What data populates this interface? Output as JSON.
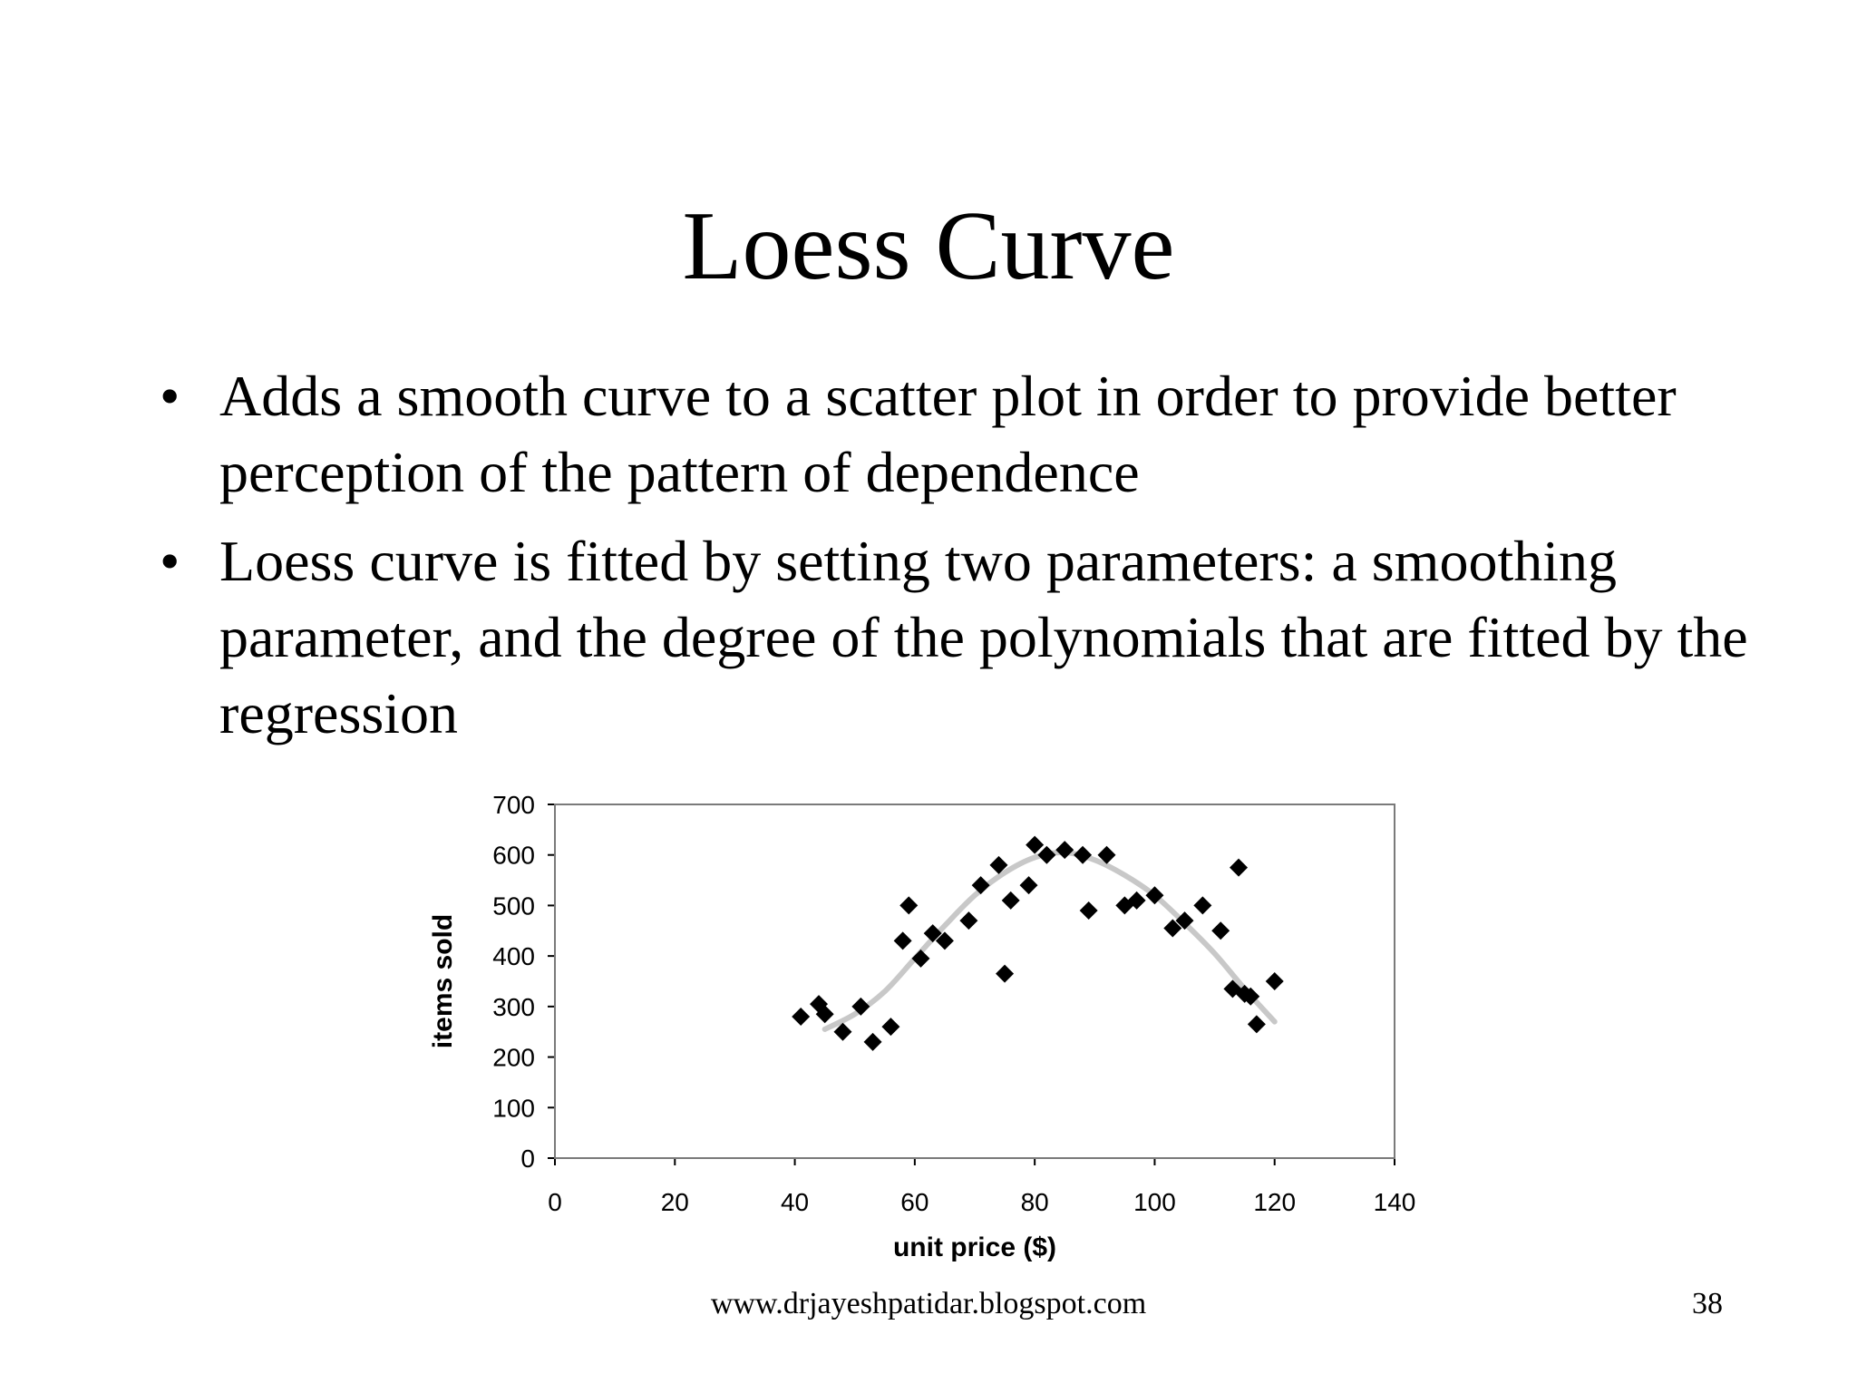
{
  "slide": {
    "title": "Loess Curve",
    "bullets": [
      "Adds a smooth curve to a scatter plot in order to provide better perception of the pattern of dependence",
      "Loess curve is fitted by setting two parameters: a smoothing parameter, and the degree of the polynomials that are fitted by the regression"
    ],
    "bullet_symbol": "•",
    "footer_url": "www.drjayeshpatidar.blogspot.com",
    "page_number": "38"
  },
  "chart_data": {
    "type": "scatter",
    "title": "",
    "xlabel": "unit price ($)",
    "ylabel": "items sold",
    "xlim": [
      0,
      140
    ],
    "ylim": [
      0,
      700
    ],
    "xticks": [
      0,
      20,
      40,
      60,
      80,
      100,
      120,
      140
    ],
    "yticks": [
      0,
      100,
      200,
      300,
      400,
      500,
      600,
      700
    ],
    "grid": false,
    "legend": "none",
    "marker": "diamond",
    "marker_color": "#000000",
    "curve_color": "#c8c8c8",
    "points": [
      {
        "x": 41,
        "y": 280
      },
      {
        "x": 44,
        "y": 305
      },
      {
        "x": 45,
        "y": 285
      },
      {
        "x": 48,
        "y": 250
      },
      {
        "x": 51,
        "y": 300
      },
      {
        "x": 53,
        "y": 230
      },
      {
        "x": 56,
        "y": 260
      },
      {
        "x": 58,
        "y": 430
      },
      {
        "x": 59,
        "y": 500
      },
      {
        "x": 61,
        "y": 395
      },
      {
        "x": 63,
        "y": 445
      },
      {
        "x": 65,
        "y": 430
      },
      {
        "x": 69,
        "y": 470
      },
      {
        "x": 71,
        "y": 540
      },
      {
        "x": 74,
        "y": 580
      },
      {
        "x": 75,
        "y": 365
      },
      {
        "x": 76,
        "y": 510
      },
      {
        "x": 79,
        "y": 540
      },
      {
        "x": 80,
        "y": 620
      },
      {
        "x": 82,
        "y": 600
      },
      {
        "x": 85,
        "y": 610
      },
      {
        "x": 88,
        "y": 600
      },
      {
        "x": 89,
        "y": 490
      },
      {
        "x": 92,
        "y": 600
      },
      {
        "x": 95,
        "y": 500
      },
      {
        "x": 97,
        "y": 510
      },
      {
        "x": 100,
        "y": 520
      },
      {
        "x": 103,
        "y": 455
      },
      {
        "x": 105,
        "y": 470
      },
      {
        "x": 108,
        "y": 500
      },
      {
        "x": 111,
        "y": 450
      },
      {
        "x": 113,
        "y": 335
      },
      {
        "x": 114,
        "y": 575
      },
      {
        "x": 115,
        "y": 325
      },
      {
        "x": 116,
        "y": 320
      },
      {
        "x": 117,
        "y": 265
      },
      {
        "x": 120,
        "y": 350
      }
    ],
    "loess_curve": [
      {
        "x": 45,
        "y": 255
      },
      {
        "x": 50,
        "y": 285
      },
      {
        "x": 55,
        "y": 330
      },
      {
        "x": 60,
        "y": 395
      },
      {
        "x": 65,
        "y": 460
      },
      {
        "x": 70,
        "y": 520
      },
      {
        "x": 75,
        "y": 565
      },
      {
        "x": 80,
        "y": 595
      },
      {
        "x": 85,
        "y": 605
      },
      {
        "x": 90,
        "y": 590
      },
      {
        "x": 95,
        "y": 560
      },
      {
        "x": 100,
        "y": 520
      },
      {
        "x": 105,
        "y": 465
      },
      {
        "x": 110,
        "y": 405
      },
      {
        "x": 115,
        "y": 335
      },
      {
        "x": 120,
        "y": 270
      }
    ]
  }
}
